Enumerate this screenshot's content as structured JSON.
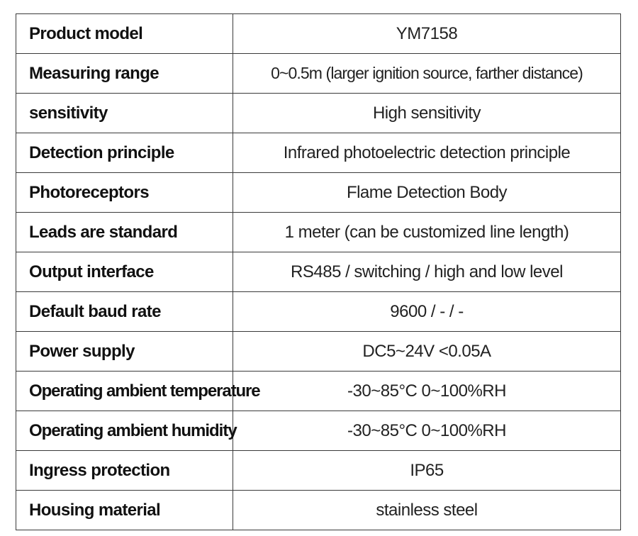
{
  "specs": [
    {
      "label": "Product model",
      "value": "YM7158"
    },
    {
      "label": "Measuring range",
      "value": "0~0.5m (larger ignition source, farther distance)"
    },
    {
      "label": "sensitivity",
      "value": "High sensitivity"
    },
    {
      "label": "Detection principle",
      "value": "Infrared photoelectric detection principle"
    },
    {
      "label": "Photoreceptors",
      "value": "Flame Detection Body"
    },
    {
      "label": "Leads are standard",
      "value": "1 meter (can be customized line length)"
    },
    {
      "label": "Output interface",
      "value": "RS485 / switching / high and low level"
    },
    {
      "label": "Default baud rate",
      "value": "9600 / - / -"
    },
    {
      "label": "Power supply",
      "value": "DC5~24V <0.05A"
    },
    {
      "label": "Operating ambient temperature",
      "value": "-30~85°C 0~100%RH"
    },
    {
      "label": "Operating ambient humidity",
      "value": "-30~85°C 0~100%RH"
    },
    {
      "label": "Ingress protection",
      "value": "IP65"
    },
    {
      "label": "Housing material",
      "value": "stainless steel"
    }
  ]
}
